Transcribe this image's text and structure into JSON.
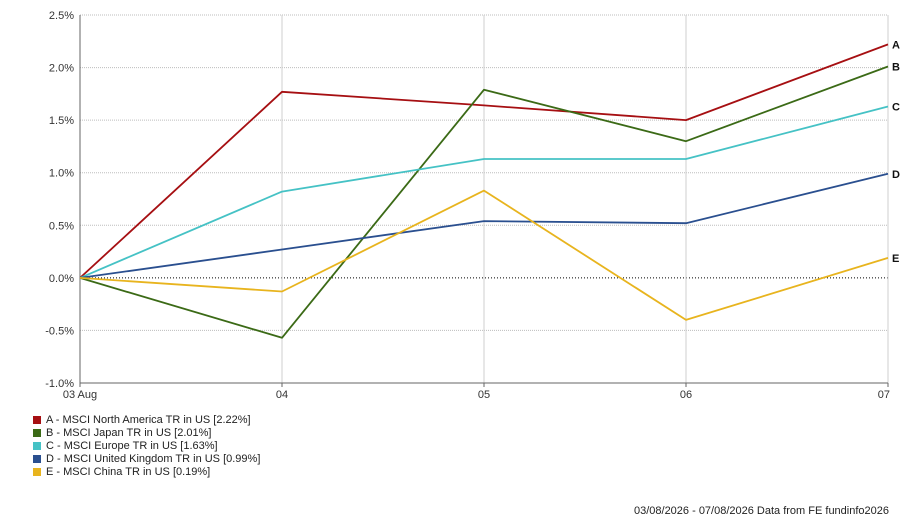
{
  "chart_data": {
    "type": "line",
    "categories": [
      "03 Aug",
      "04",
      "05",
      "06",
      "07"
    ],
    "yticks": [
      "2.5%",
      "2.0%",
      "1.5%",
      "1.0%",
      "0.5%",
      "0.0%",
      "-0.5%",
      "-1.0%"
    ],
    "ylim": [
      -1.0,
      2.5
    ],
    "grid": true,
    "legend_placement": "bottom-left",
    "series": [
      {
        "key": "A",
        "name": "A - MSCI North America TR in US [2.22%]",
        "color": "#a60f12",
        "values": [
          0.0,
          1.77,
          1.64,
          1.5,
          2.22
        ]
      },
      {
        "key": "B",
        "name": "B - MSCI Japan TR in US [2.01%]",
        "color": "#3b6a16",
        "values": [
          0.0,
          -0.57,
          1.79,
          1.3,
          2.01
        ]
      },
      {
        "key": "C",
        "name": "C - MSCI Europe TR in US [1.63%]",
        "color": "#45c2c5",
        "values": [
          0.0,
          0.82,
          1.13,
          1.13,
          1.63
        ]
      },
      {
        "key": "D",
        "name": "D - MSCI United Kingdom TR in US [0.99%]",
        "color": "#2a4f8f",
        "values": [
          0.0,
          0.27,
          0.54,
          0.52,
          0.99
        ]
      },
      {
        "key": "E",
        "name": "E - MSCI China TR in US [0.19%]",
        "color": "#e8b41e",
        "values": [
          0.0,
          -0.13,
          0.83,
          -0.4,
          0.19
        ]
      }
    ]
  },
  "footer": "03/08/2026 - 07/08/2026 Data from FE fundinfo2026"
}
